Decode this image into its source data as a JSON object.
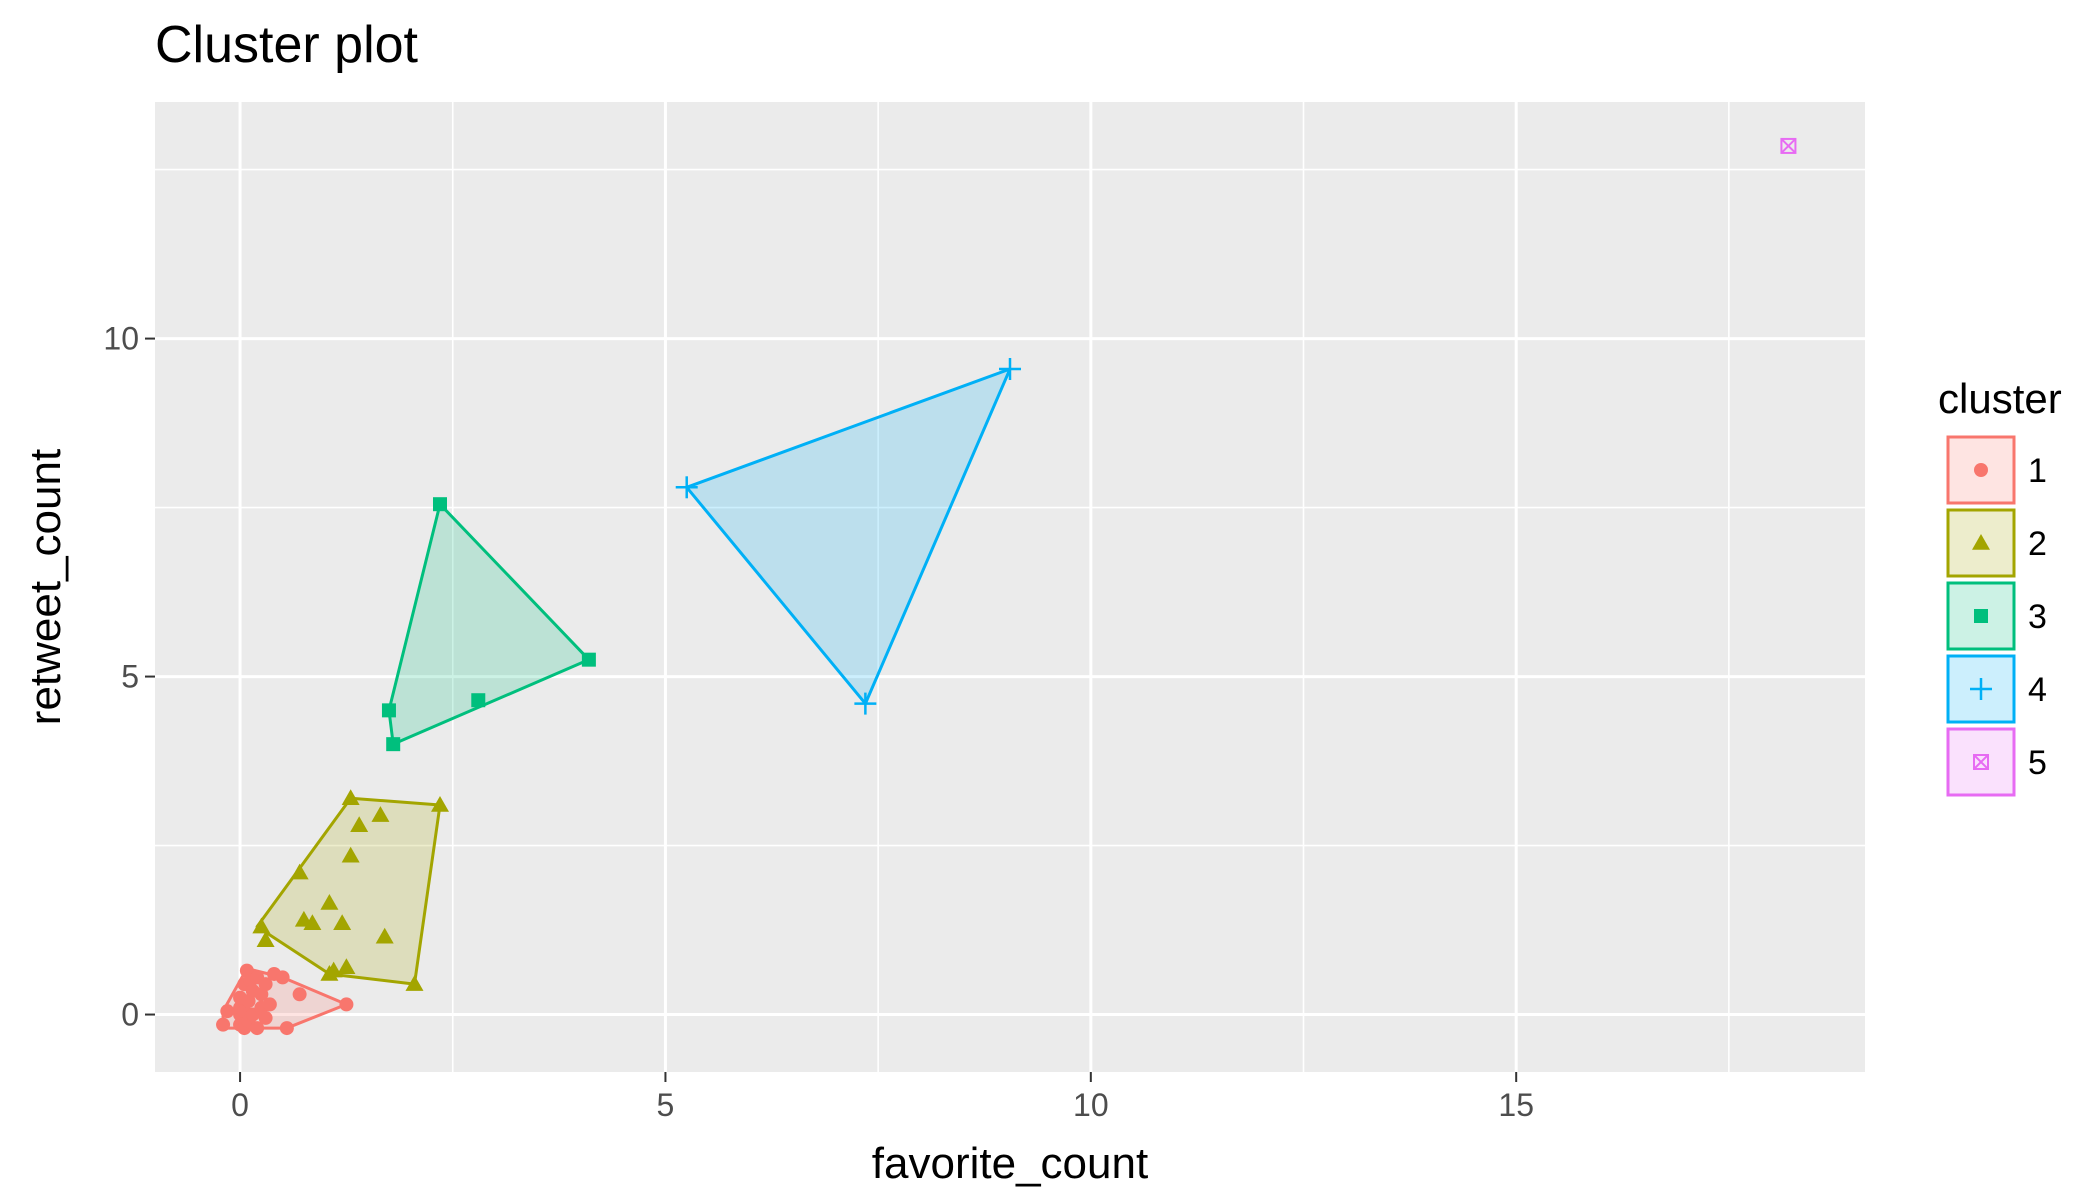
{
  "chart_data": {
    "type": "scatter",
    "title": "Cluster plot",
    "xlabel": "favorite_count",
    "ylabel": "retweet_count",
    "xlim": [
      -1.0,
      19.1
    ],
    "ylim": [
      -0.85,
      13.5
    ],
    "x_ticks": [
      0,
      5,
      10,
      15
    ],
    "y_ticks": [
      0,
      5,
      10
    ],
    "x_tick_labels": [
      "0",
      "5",
      "10",
      "15"
    ],
    "y_tick_labels": [
      "0",
      "5",
      "10"
    ],
    "grid": true,
    "legend": {
      "title": "cluster",
      "placement": "right"
    },
    "series": [
      {
        "name": "1",
        "color": "#F8766D",
        "shape": "circle",
        "points": [
          [
            0.0,
            0.0
          ],
          [
            0.0,
            -0.15
          ],
          [
            0.0,
            0.1
          ],
          [
            0.0,
            0.25
          ],
          [
            0.05,
            -0.2
          ],
          [
            0.05,
            0.05
          ],
          [
            0.05,
            0.45
          ],
          [
            0.08,
            0.65
          ],
          [
            0.1,
            0.2
          ],
          [
            0.1,
            -0.1
          ],
          [
            0.12,
            0.5
          ],
          [
            0.15,
            0.0
          ],
          [
            0.15,
            0.35
          ],
          [
            0.2,
            -0.2
          ],
          [
            0.2,
            0.55
          ],
          [
            0.25,
            0.1
          ],
          [
            0.25,
            0.3
          ],
          [
            0.3,
            -0.05
          ],
          [
            0.3,
            0.45
          ],
          [
            0.35,
            0.15
          ],
          [
            0.4,
            0.6
          ],
          [
            0.5,
            0.55
          ],
          [
            -0.15,
            0.05
          ],
          [
            -0.2,
            -0.15
          ],
          [
            0.55,
            -0.2
          ],
          [
            0.7,
            0.3
          ],
          [
            1.25,
            0.15
          ]
        ],
        "hull": [
          [
            -0.2,
            -0.2
          ],
          [
            0.55,
            -0.2
          ],
          [
            1.25,
            0.15
          ],
          [
            0.5,
            0.55
          ],
          [
            0.08,
            0.68
          ],
          [
            -0.2,
            0.05
          ]
        ]
      },
      {
        "name": "2",
        "color": "#A3A500",
        "shape": "triangle",
        "points": [
          [
            0.25,
            1.3
          ],
          [
            0.3,
            1.1
          ],
          [
            0.7,
            2.1
          ],
          [
            0.75,
            1.4
          ],
          [
            0.85,
            1.35
          ],
          [
            1.05,
            1.65
          ],
          [
            1.1,
            0.65
          ],
          [
            1.2,
            1.35
          ],
          [
            1.25,
            0.7
          ],
          [
            1.3,
            2.35
          ],
          [
            1.3,
            3.2
          ],
          [
            1.4,
            2.8
          ],
          [
            1.65,
            2.95
          ],
          [
            1.7,
            1.15
          ],
          [
            2.05,
            0.45
          ],
          [
            2.35,
            3.1
          ],
          [
            1.05,
            0.6
          ]
        ],
        "hull": [
          [
            0.2,
            1.3
          ],
          [
            1.3,
            3.2
          ],
          [
            2.35,
            3.1
          ],
          [
            2.05,
            0.45
          ],
          [
            1.05,
            0.6
          ]
        ]
      },
      {
        "name": "3",
        "color": "#00BF7D",
        "shape": "square",
        "points": [
          [
            1.75,
            4.5
          ],
          [
            1.8,
            4.0
          ],
          [
            2.35,
            7.55
          ],
          [
            2.8,
            4.65
          ],
          [
            4.1,
            5.25
          ]
        ],
        "hull": [
          [
            1.75,
            4.5
          ],
          [
            2.35,
            7.55
          ],
          [
            4.1,
            5.25
          ],
          [
            1.8,
            4.0
          ]
        ]
      },
      {
        "name": "4",
        "color": "#00B0F6",
        "shape": "plus",
        "points": [
          [
            5.25,
            7.8
          ],
          [
            7.35,
            4.6
          ],
          [
            9.05,
            9.55
          ]
        ],
        "hull": [
          [
            5.25,
            7.8
          ],
          [
            9.05,
            9.55
          ],
          [
            7.35,
            4.6
          ]
        ]
      },
      {
        "name": "5",
        "color": "#E76BF3",
        "shape": "square-cross",
        "points": [
          [
            18.2,
            12.85
          ]
        ],
        "hull": []
      }
    ]
  }
}
